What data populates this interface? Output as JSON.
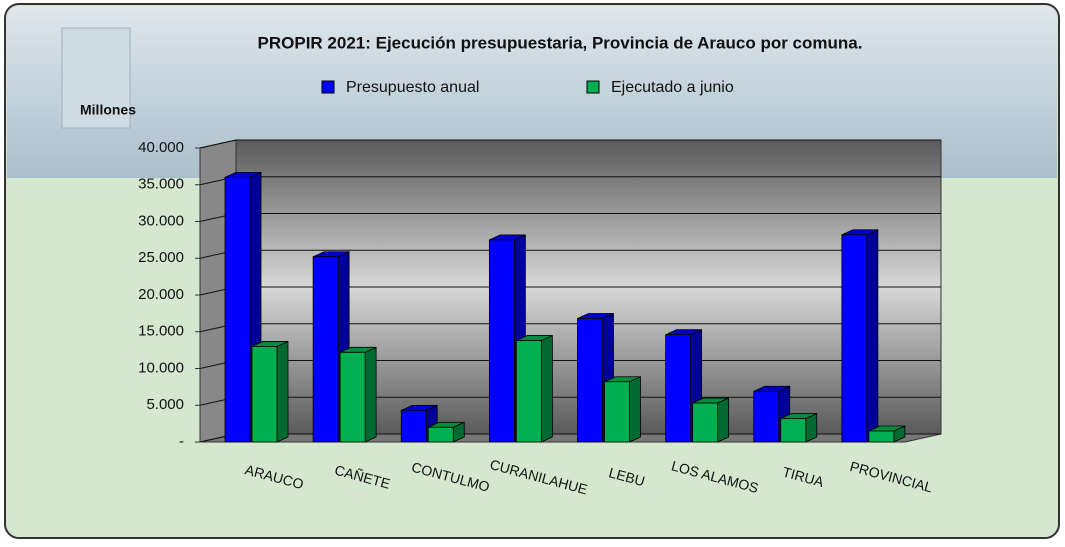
{
  "chart_data": {
    "type": "bar3d",
    "title": "PROPIR 2021: Ejecución presupuestaria,  Provincia de Arauco por comuna.",
    "y_label": "Millones",
    "categories": [
      "ARAUCO",
      "CAÑETE",
      "CONTULMO",
      "CURANILAHUE",
      "LEBU",
      "LOS ALAMOS",
      "TIRUA",
      "PROVINCIAL"
    ],
    "series": [
      {
        "name": "Presupuesto anual",
        "color": "#0000ff",
        "values": [
          36000,
          25200,
          4300,
          27500,
          16800,
          14600,
          6900,
          28200
        ]
      },
      {
        "name": "Ejecutado a junio",
        "color": "#00b050",
        "values": [
          13000,
          12200,
          2000,
          13800,
          8200,
          5300,
          3200,
          1500
        ]
      }
    ],
    "ylim": [
      0,
      40000
    ],
    "yticks": [
      {
        "value": 0,
        "label": "-"
      },
      {
        "value": 5000,
        "label": "5.000"
      },
      {
        "value": 10000,
        "label": "10.000"
      },
      {
        "value": 15000,
        "label": "15.000"
      },
      {
        "value": 20000,
        "label": "20.000"
      },
      {
        "value": 25000,
        "label": "25.000"
      },
      {
        "value": 30000,
        "label": "30.000"
      },
      {
        "value": 35000,
        "label": "35.000"
      },
      {
        "value": 40000,
        "label": "40.000"
      }
    ],
    "grid": true
  }
}
